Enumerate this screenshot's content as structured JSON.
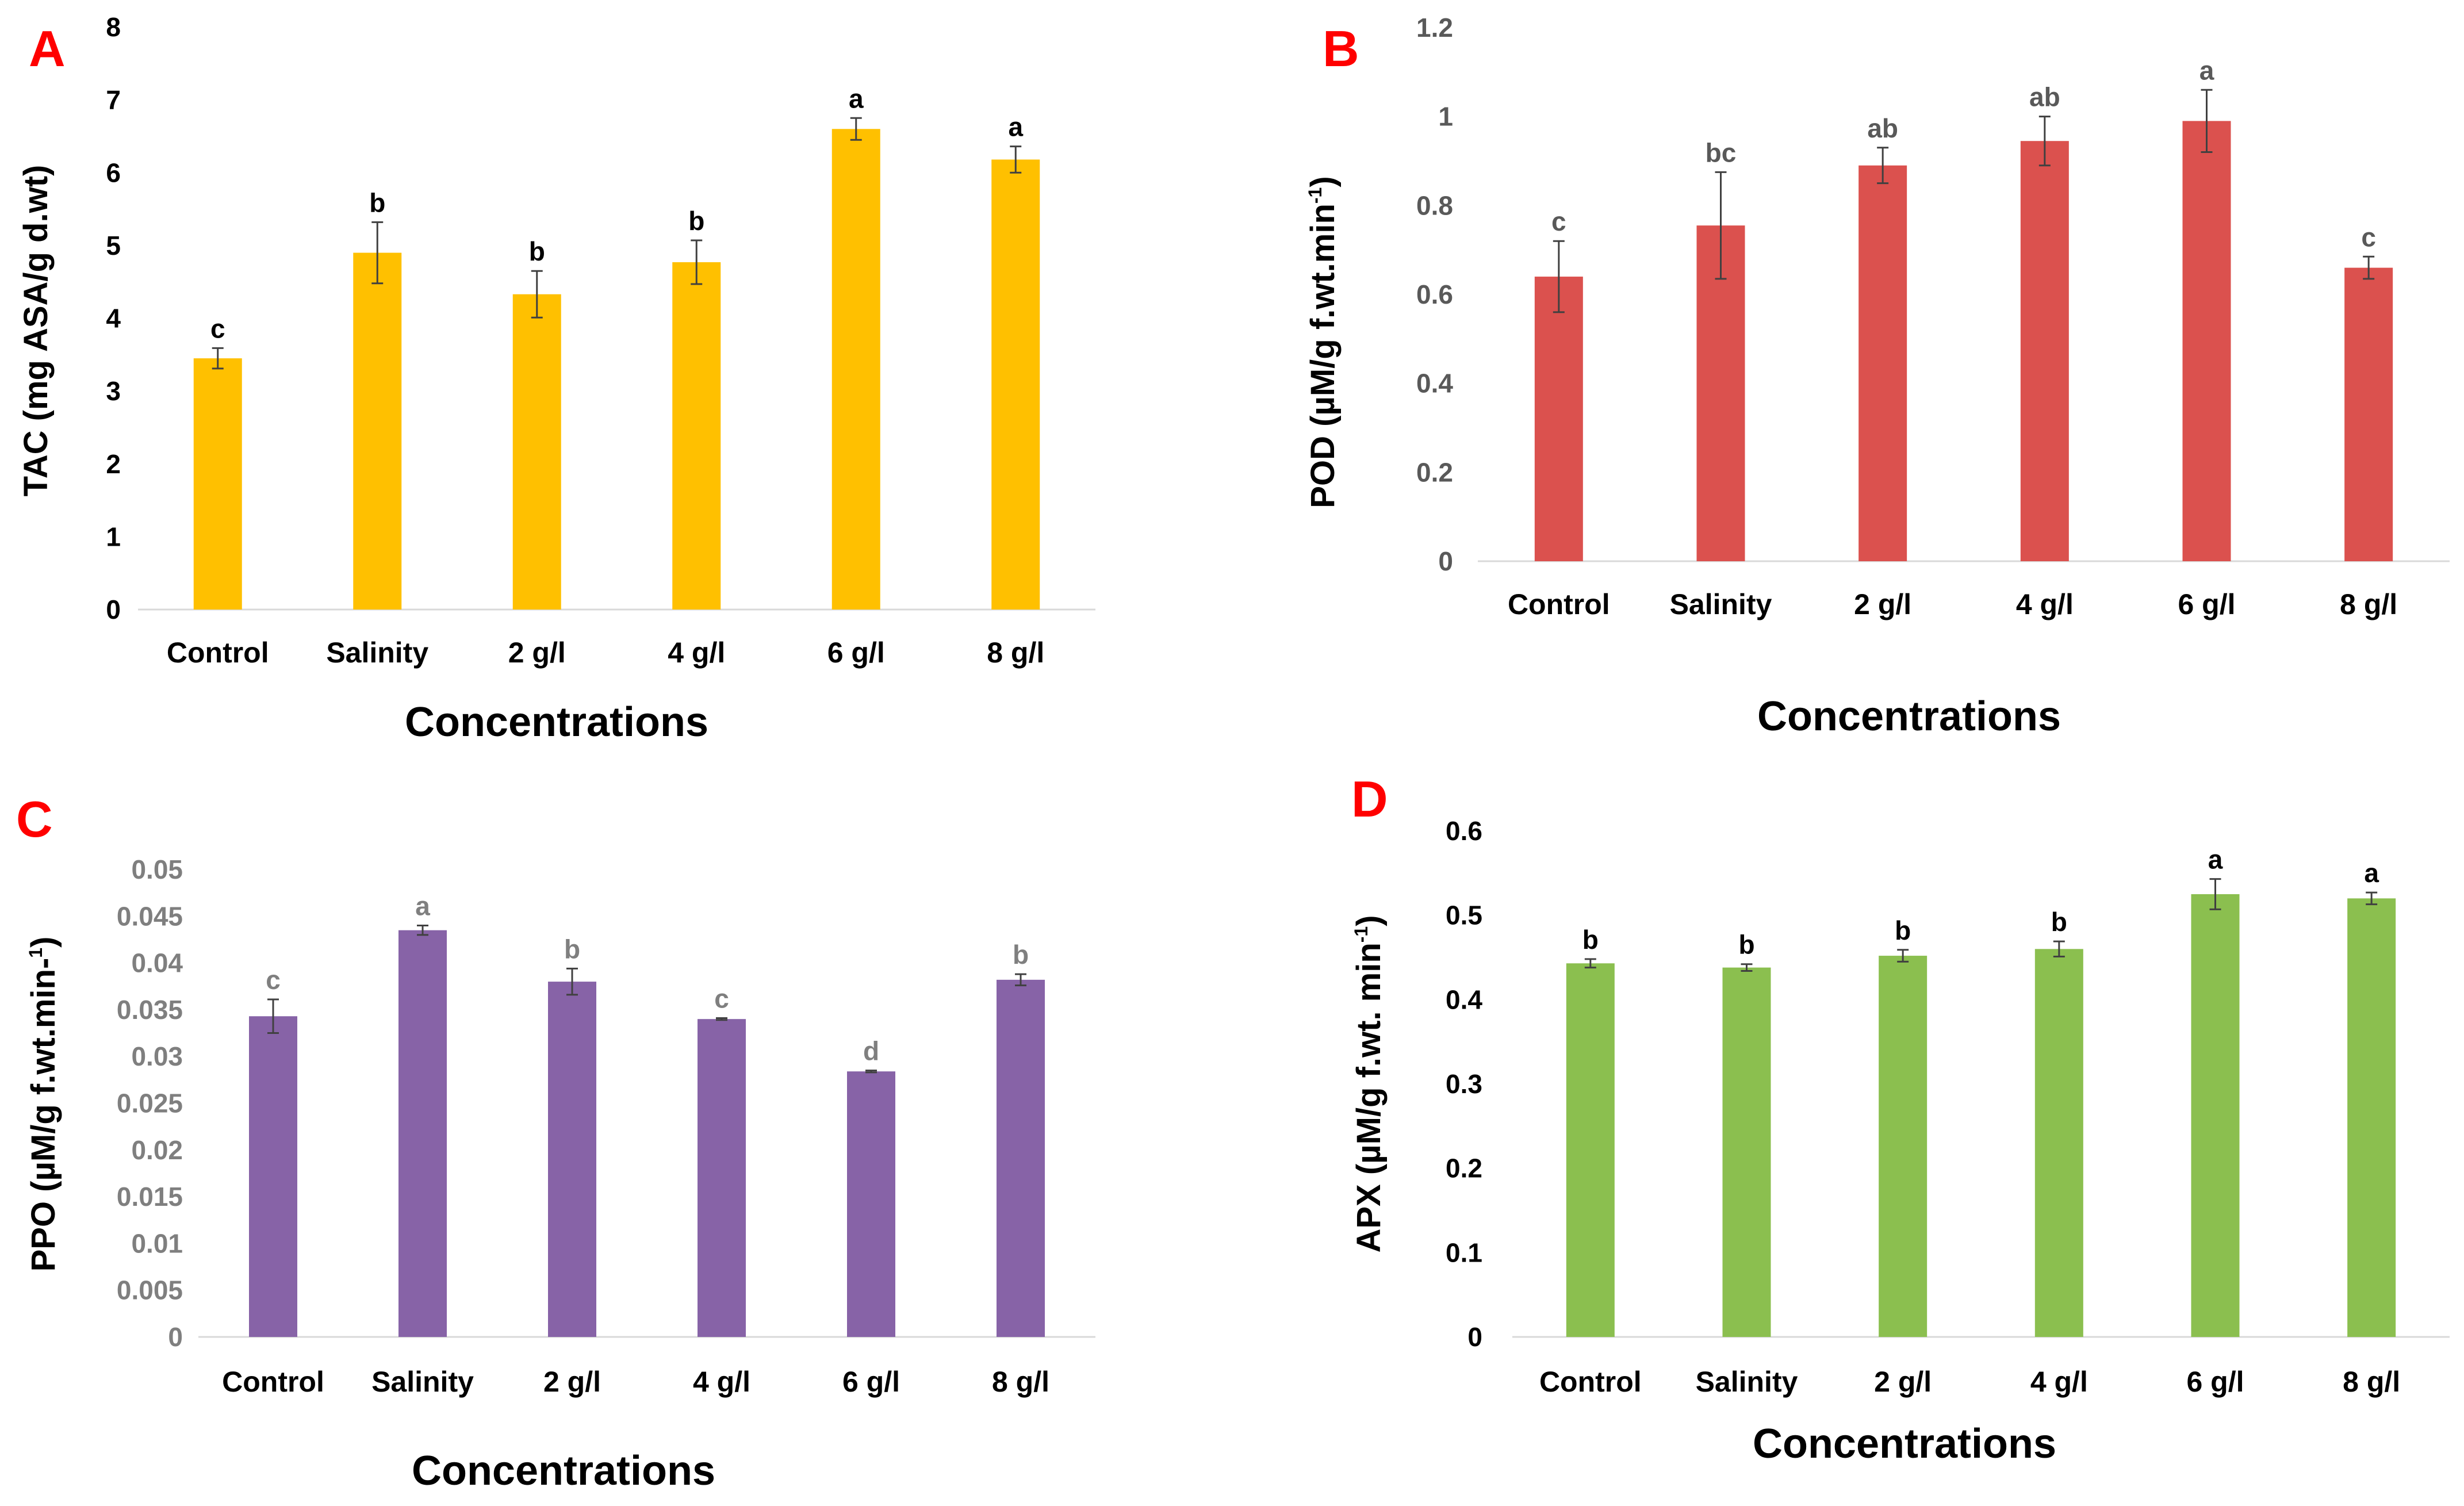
{
  "chart_data": [
    {
      "type": "bar",
      "panel_label": "A",
      "categories": [
        "Control",
        "Salinity",
        "2 g/l",
        "4 g/l",
        "6 g/l",
        "8 g/l"
      ],
      "values": [
        3.45,
        4.9,
        4.33,
        4.77,
        6.6,
        6.18
      ],
      "errors": [
        0.14,
        0.42,
        0.32,
        0.3,
        0.15,
        0.18
      ],
      "significance": [
        "c",
        "b",
        "b",
        "b",
        "a",
        "a"
      ],
      "color": "#ffc000",
      "label_color": "#000000",
      "ylabel_main": "TAC  (mg ASA/g d.wt)",
      "ylabel_sup": "",
      "ylabel_tail": "",
      "xlabel": "Concentrations",
      "ylim": [
        0,
        8
      ],
      "ticks": [
        "0",
        "1",
        "2",
        "3",
        "4",
        "5",
        "6",
        "7",
        "8"
      ]
    },
    {
      "type": "bar",
      "panel_label": "B",
      "categories": [
        "Control",
        "Salinity",
        "2 g/l",
        "4 g/l",
        "6 g/l",
        "8 g/l"
      ],
      "values": [
        0.64,
        0.755,
        0.89,
        0.945,
        0.99,
        0.66
      ],
      "errors": [
        0.08,
        0.12,
        0.04,
        0.055,
        0.07,
        0.025
      ],
      "significance": [
        "c",
        "bc",
        "ab",
        "ab",
        "a",
        "c"
      ],
      "color": "#db514e",
      "label_color": "#595959",
      "ylabel_main": "POD (µM/g f.wt.min",
      "ylabel_sup": "-1",
      "ylabel_tail": ")",
      "xlabel": "Concentrations",
      "ylim": [
        0,
        1.2
      ],
      "ticks": [
        "0",
        "0.2",
        "0.4",
        "0.6",
        "0.8",
        "1",
        "1.2"
      ]
    },
    {
      "type": "bar",
      "panel_label": "C",
      "categories": [
        "Control",
        "Salinity",
        "2 g/l",
        "4 g/l",
        "6 g/l",
        "8 g/l"
      ],
      "values": [
        0.0343,
        0.0435,
        0.038,
        0.034,
        0.0284,
        0.0382
      ],
      "errors": [
        0.0018,
        0.0005,
        0.0014,
        0.0001,
        0.0001,
        0.0006
      ],
      "significance": [
        "c",
        "a",
        "b",
        "c",
        "d",
        "b"
      ],
      "color": "#8763a7",
      "label_color": "#7f7f7f",
      "ylabel_main": "PPO (µM/g f.wt.min-",
      "ylabel_sup": "1",
      "ylabel_tail": ")",
      "xlabel": "Concentrations",
      "ylim": [
        0,
        0.05
      ],
      "ticks": [
        "0",
        "0.005",
        "0.01",
        "0.015",
        "0.02",
        "0.025",
        "0.03",
        "0.035",
        "0.04",
        "0.045",
        "0.05"
      ]
    },
    {
      "type": "bar",
      "panel_label": "D",
      "categories": [
        "Control",
        "Salinity",
        "2 g/l",
        "4 g/l",
        "6 g/l",
        "8 g/l"
      ],
      "values": [
        0.443,
        0.438,
        0.452,
        0.46,
        0.525,
        0.52
      ],
      "errors": [
        0.005,
        0.004,
        0.007,
        0.009,
        0.018,
        0.007
      ],
      "significance": [
        "b",
        "b",
        "b",
        "b",
        "a",
        "a"
      ],
      "color": "#8bbf4f",
      "label_color": "#000000",
      "ylabel_main": "APX (µM/g f.wt. min",
      "ylabel_sup": "-1",
      "ylabel_tail": ")",
      "xlabel": "Concentrations",
      "ylim": [
        0,
        0.6
      ],
      "ticks": [
        "0",
        "0.1",
        "0.2",
        "0.3",
        "0.4",
        "0.5",
        "0.6"
      ]
    }
  ]
}
